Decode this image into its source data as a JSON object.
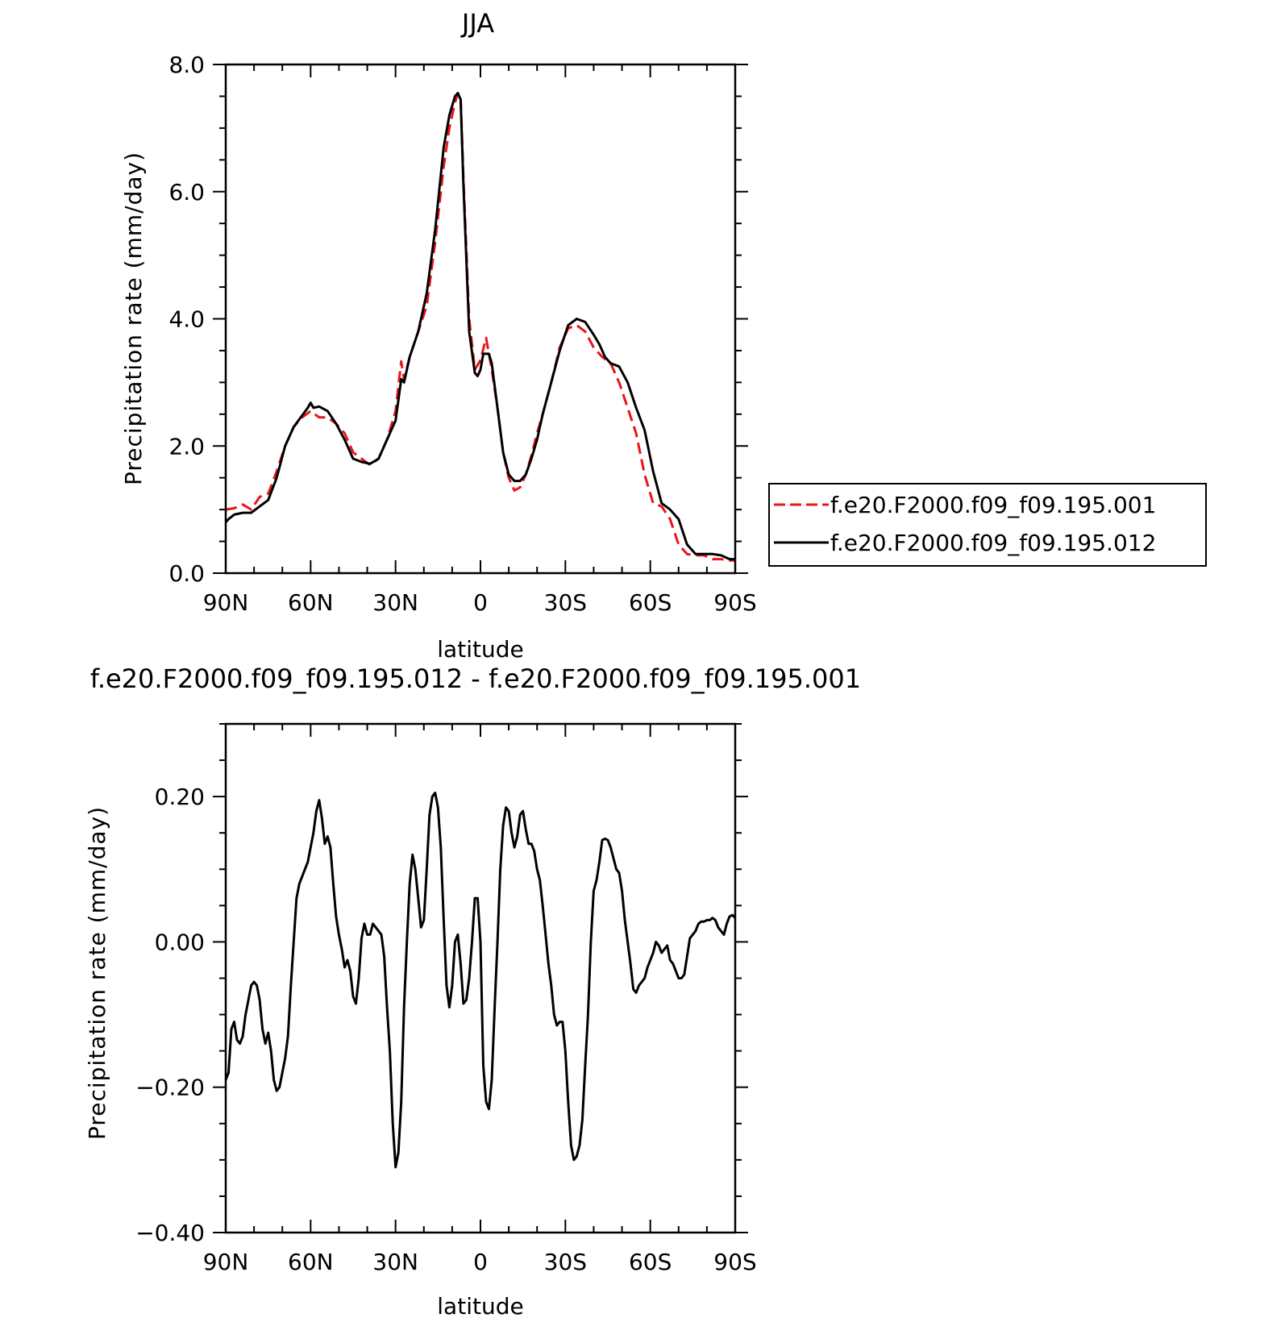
{
  "chart_data": [
    {
      "type": "line",
      "title": "JJA",
      "xlabel": "latitude",
      "ylabel": "Precipitation rate (mm/day)",
      "ylim": [
        0,
        8
      ],
      "xlim": [
        90,
        -90
      ],
      "xticks": [
        90,
        60,
        30,
        0,
        -30,
        -60,
        -90
      ],
      "xtick_labels": [
        "90N",
        "60N",
        "30N",
        "0",
        "30S",
        "60S",
        "90S"
      ],
      "yticks": [
        0,
        2,
        4,
        6,
        8
      ],
      "ytick_labels": [
        "0.0",
        "2.0",
        "4.0",
        "6.0",
        "8.0"
      ],
      "legend_position": "right",
      "series": [
        {
          "name": "f.e20.F2000.f09_f09.195.001",
          "color": "#e8141b",
          "dash": "dashed",
          "x": [
            90,
            87,
            84,
            81,
            78,
            75,
            72,
            69,
            66,
            63,
            60,
            57,
            54,
            51,
            48,
            45,
            42,
            39,
            36,
            33,
            30,
            28,
            27,
            25,
            22,
            19,
            16,
            13,
            11,
            9,
            8,
            7,
            6,
            4,
            2,
            0,
            -2,
            -4,
            -6,
            -8,
            -10,
            -12,
            -14,
            -16,
            -18,
            -20,
            -22,
            -25,
            -28,
            -31,
            -34,
            -37,
            -40,
            -43,
            -46,
            -49,
            -52,
            -55,
            -58,
            -61,
            -64,
            -67,
            -70,
            -73,
            -76,
            -79,
            -82,
            -85,
            -88,
            -90
          ],
          "y": [
            1.0,
            1.02,
            1.08,
            1.0,
            1.2,
            1.25,
            1.6,
            2.0,
            2.3,
            2.45,
            2.55,
            2.45,
            2.45,
            2.35,
            2.2,
            1.9,
            1.8,
            1.7,
            1.8,
            2.1,
            2.55,
            3.33,
            3.05,
            3.4,
            3.8,
            4.2,
            5.2,
            6.4,
            7.0,
            7.4,
            7.55,
            7.5,
            6.2,
            4.0,
            3.2,
            3.35,
            3.7,
            3.2,
            2.6,
            1.9,
            1.5,
            1.3,
            1.35,
            1.55,
            1.85,
            2.2,
            2.5,
            3.0,
            3.55,
            3.85,
            3.9,
            3.8,
            3.55,
            3.4,
            3.3,
            3.0,
            2.6,
            2.2,
            1.55,
            1.1,
            1.05,
            0.85,
            0.45,
            0.3,
            0.28,
            0.28,
            0.22,
            0.22,
            0.2,
            0.2
          ]
        },
        {
          "name": "f.e20.F2000.f09_f09.195.012",
          "color": "#000000",
          "dash": "solid",
          "x": [
            90,
            89,
            87,
            84,
            81,
            78,
            75,
            72,
            69,
            66,
            63,
            61,
            60,
            59,
            57,
            54,
            51,
            48,
            45,
            42,
            39,
            36,
            33,
            30,
            28,
            27,
            25,
            22,
            19,
            16,
            13,
            11,
            9,
            8,
            7,
            6,
            4,
            2,
            1,
            0,
            -1,
            -3,
            -4,
            -6,
            -8,
            -10,
            -12,
            -14,
            -16,
            -18,
            -20,
            -22,
            -25,
            -28,
            -31,
            -34,
            -37,
            -40,
            -42,
            -43,
            -44,
            -46,
            -49,
            -52,
            -55,
            -58,
            -61,
            -64,
            -67,
            -70,
            -73,
            -76,
            -79,
            -82,
            -85,
            -88,
            -90
          ],
          "y": [
            0.8,
            0.85,
            0.92,
            0.95,
            0.95,
            1.05,
            1.15,
            1.5,
            2.0,
            2.3,
            2.48,
            2.6,
            2.68,
            2.6,
            2.62,
            2.55,
            2.35,
            2.1,
            1.8,
            1.75,
            1.72,
            1.8,
            2.1,
            2.4,
            3.05,
            3.0,
            3.4,
            3.8,
            4.4,
            5.4,
            6.7,
            7.2,
            7.5,
            7.55,
            7.45,
            6.1,
            3.8,
            3.15,
            3.1,
            3.2,
            3.45,
            3.45,
            3.3,
            2.6,
            1.9,
            1.55,
            1.45,
            1.45,
            1.55,
            1.8,
            2.1,
            2.5,
            3.0,
            3.5,
            3.9,
            4.0,
            3.95,
            3.75,
            3.6,
            3.5,
            3.4,
            3.3,
            3.25,
            3.0,
            2.6,
            2.25,
            1.6,
            1.1,
            1.0,
            0.85,
            0.45,
            0.3,
            0.3,
            0.3,
            0.28,
            0.22,
            0.22
          ]
        }
      ]
    },
    {
      "type": "line",
      "title": "f.e20.F2000.f09_f09.195.012 - f.e20.F2000.f09_f09.195.001",
      "xlabel": "latitude",
      "ylabel": "Precipitation rate (mm/day)",
      "ylim": [
        -0.4,
        0.3
      ],
      "xlim": [
        90,
        -90
      ],
      "xticks": [
        90,
        60,
        30,
        0,
        -30,
        -60,
        -90
      ],
      "xtick_labels": [
        "90N",
        "60N",
        "30N",
        "0",
        "30S",
        "60S",
        "90S"
      ],
      "yticks": [
        -0.4,
        -0.2,
        0,
        0.2
      ],
      "ytick_labels": [
        "−0.40",
        "−0.20",
        "0.00",
        "0.20"
      ],
      "series": [
        {
          "color": "#000000",
          "dash": "solid",
          "x": [
            90,
            89,
            88,
            87,
            86,
            85,
            84,
            83,
            82,
            81,
            80,
            79,
            78,
            77,
            76,
            75,
            74,
            73,
            72,
            71,
            70,
            69,
            68,
            67,
            66,
            65,
            64,
            63,
            62,
            61,
            60,
            59,
            58,
            57,
            56,
            55,
            54,
            53,
            52,
            51,
            50,
            49,
            48,
            47,
            46,
            45,
            44,
            43,
            42,
            41,
            40,
            39,
            38,
            37,
            36,
            35,
            34,
            33,
            32,
            31,
            30,
            29,
            28,
            27,
            26,
            25,
            24,
            23,
            22,
            21,
            20,
            19,
            18,
            17,
            16,
            15,
            14,
            13,
            12,
            11,
            10,
            9,
            8,
            7,
            6,
            5,
            4,
            3,
            2,
            1,
            0,
            -1,
            -2,
            -3,
            -4,
            -5,
            -6,
            -7,
            -8,
            -9,
            -10,
            -11,
            -12,
            -13,
            -14,
            -15,
            -16,
            -17,
            -18,
            -19,
            -20,
            -21,
            -22,
            -23,
            -24,
            -25,
            -26,
            -27,
            -28,
            -29,
            -30,
            -31,
            -32,
            -33,
            -34,
            -35,
            -36,
            -37,
            -38,
            -39,
            -40,
            -41,
            -42,
            -43,
            -44,
            -45,
            -46,
            -47,
            -48,
            -49,
            -50,
            -51,
            -52,
            -53,
            -54,
            -55,
            -56,
            -57,
            -58,
            -59,
            -60,
            -61,
            -62,
            -63,
            -64,
            -65,
            -66,
            -67,
            -68,
            -69,
            -70,
            -71,
            -72,
            -73,
            -74,
            -75,
            -76,
            -77,
            -78,
            -79,
            -80,
            -81,
            -82,
            -83,
            -84,
            -85,
            -86,
            -87,
            -88,
            -89,
            -90
          ],
          "y": [
            -0.19,
            -0.18,
            -0.12,
            -0.11,
            -0.135,
            -0.14,
            -0.13,
            -0.1,
            -0.08,
            -0.06,
            -0.055,
            -0.06,
            -0.08,
            -0.12,
            -0.14,
            -0.125,
            -0.15,
            -0.19,
            -0.205,
            -0.2,
            -0.18,
            -0.16,
            -0.13,
            -0.06,
            0.0,
            0.06,
            0.08,
            0.09,
            0.1,
            0.11,
            0.13,
            0.15,
            0.18,
            0.195,
            0.17,
            0.135,
            0.145,
            0.13,
            0.08,
            0.035,
            0.01,
            -0.01,
            -0.035,
            -0.025,
            -0.04,
            -0.075,
            -0.085,
            -0.05,
            0.005,
            0.025,
            0.01,
            0.01,
            0.025,
            0.02,
            0.015,
            0.01,
            -0.02,
            -0.09,
            -0.15,
            -0.25,
            -0.31,
            -0.29,
            -0.22,
            -0.09,
            0.0,
            0.08,
            0.12,
            0.1,
            0.06,
            0.02,
            0.03,
            0.1,
            0.175,
            0.2,
            0.205,
            0.185,
            0.13,
            0.03,
            -0.06,
            -0.09,
            -0.06,
            0.0,
            0.01,
            -0.03,
            -0.085,
            -0.08,
            -0.05,
            0.0,
            0.06,
            0.06,
            0.0,
            -0.17,
            -0.22,
            -0.23,
            -0.19,
            -0.09,
            0.0,
            0.1,
            0.16,
            0.185,
            0.18,
            0.15,
            0.13,
            0.145,
            0.175,
            0.18,
            0.155,
            0.135,
            0.135,
            0.125,
            0.1,
            0.085,
            0.05,
            0.01,
            -0.03,
            -0.06,
            -0.1,
            -0.115,
            -0.11,
            -0.11,
            -0.15,
            -0.22,
            -0.28,
            -0.3,
            -0.295,
            -0.28,
            -0.245,
            -0.17,
            -0.1,
            0.0,
            0.07,
            0.085,
            0.11,
            0.14,
            0.142,
            0.14,
            0.13,
            0.115,
            0.1,
            0.095,
            0.07,
            0.03,
            0.0,
            -0.03,
            -0.065,
            -0.07,
            -0.06,
            -0.055,
            -0.05,
            -0.035,
            -0.025,
            -0.015,
            0.0,
            -0.005,
            -0.015,
            -0.01,
            -0.005,
            -0.025,
            -0.03,
            -0.04,
            -0.05,
            -0.05,
            -0.045,
            -0.02,
            0.005,
            0.01,
            0.015,
            0.025,
            0.028,
            0.028,
            0.03,
            0.03,
            0.033,
            0.03,
            0.02,
            0.015,
            0.01,
            0.025,
            0.035,
            0.037,
            0.033
          ]
        }
      ]
    }
  ]
}
